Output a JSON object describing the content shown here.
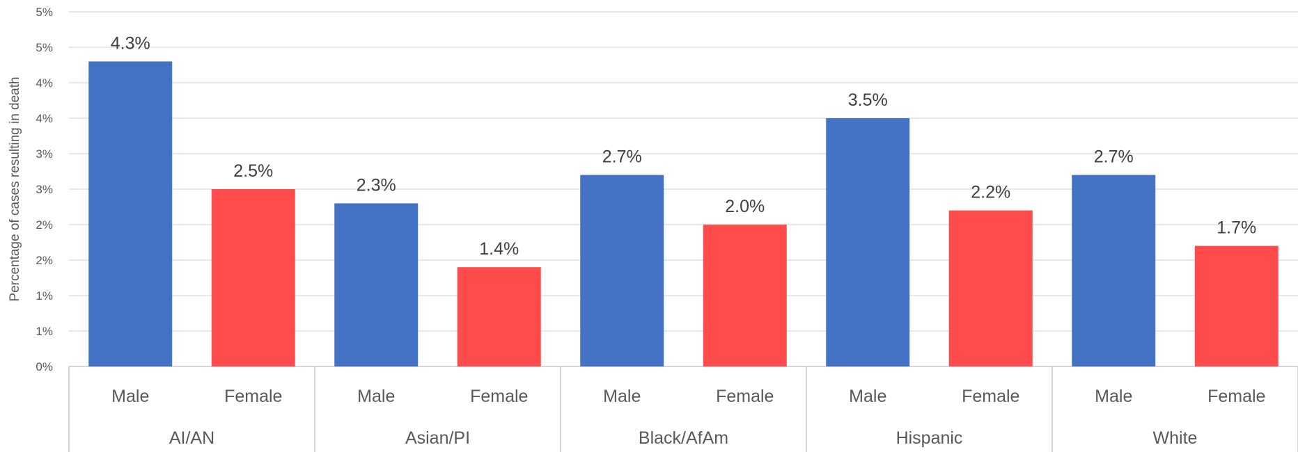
{
  "chart_data": {
    "type": "bar",
    "ylabel": "Percentage of cases resulting in death",
    "y_ticks": [
      "0%",
      "1%",
      "1%",
      "2%",
      "2%",
      "3%",
      "3%",
      "4%",
      "4%",
      "5%",
      "5%"
    ],
    "ylim": [
      0,
      5
    ],
    "grid": true,
    "groups": [
      {
        "name": "AI/AN",
        "bars": [
          {
            "label": "Male",
            "value": 4.3,
            "display": "4.3%",
            "color": "#4472C4"
          },
          {
            "label": "Female",
            "value": 2.5,
            "display": "2.5%",
            "color": "#FF4B4B"
          }
        ]
      },
      {
        "name": "Asian/PI",
        "bars": [
          {
            "label": "Male",
            "value": 2.3,
            "display": "2.3%",
            "color": "#4472C4"
          },
          {
            "label": "Female",
            "value": 1.4,
            "display": "1.4%",
            "color": "#FF4B4B"
          }
        ]
      },
      {
        "name": "Black/AfAm",
        "bars": [
          {
            "label": "Male",
            "value": 2.7,
            "display": "2.7%",
            "color": "#4472C4"
          },
          {
            "label": "Female",
            "value": 2.0,
            "display": "2.0%",
            "color": "#FF4B4B"
          }
        ]
      },
      {
        "name": "Hispanic",
        "bars": [
          {
            "label": "Male",
            "value": 3.5,
            "display": "3.5%",
            "color": "#4472C4"
          },
          {
            "label": "Female",
            "value": 2.2,
            "display": "2.2%",
            "color": "#FF4B4B"
          }
        ]
      },
      {
        "name": "White",
        "bars": [
          {
            "label": "Male",
            "value": 2.7,
            "display": "2.7%",
            "color": "#4472C4"
          },
          {
            "label": "Female",
            "value": 1.7,
            "display": "1.7%",
            "color": "#FF4B4B"
          }
        ]
      }
    ]
  }
}
